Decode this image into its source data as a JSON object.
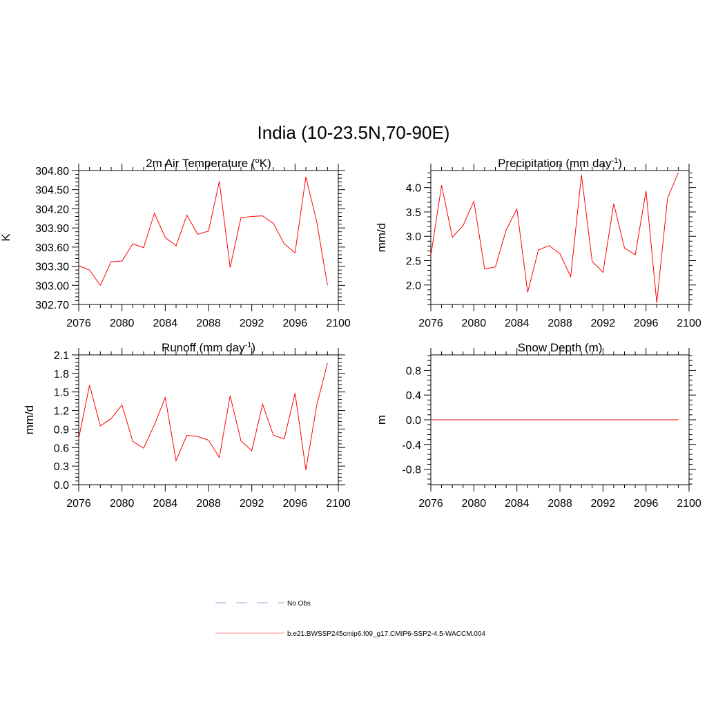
{
  "figure": {
    "title": "India (10-23.5N,70-90E)"
  },
  "chart_data": [
    {
      "type": "line",
      "title": "2m Air Temperature (",
      "title_sup": "o",
      "title_after": "K)",
      "xlabel": "",
      "ylabel": "K",
      "xlim": [
        2076,
        2100
      ],
      "ylim": [
        302.7,
        304.8
      ],
      "xticks": [
        2076,
        2080,
        2084,
        2088,
        2092,
        2096,
        2100
      ],
      "xticklabels": [
        "2076",
        "2080",
        "2084",
        "2088",
        "2092",
        "2096",
        "2100"
      ],
      "yticks": [
        302.7,
        303.0,
        303.3,
        303.6,
        303.9,
        304.2,
        304.5,
        304.8
      ],
      "yticklabels": [
        "302.70",
        "303.00",
        "303.30",
        "303.60",
        "303.90",
        "304.20",
        "304.50",
        "304.80"
      ],
      "x": [
        2076,
        2077,
        2078,
        2079,
        2080,
        2081,
        2082,
        2083,
        2084,
        2085,
        2086,
        2087,
        2088,
        2089,
        2090,
        2091,
        2092,
        2093,
        2094,
        2095,
        2096,
        2097,
        2098,
        2099
      ],
      "series": [
        {
          "values": [
            303.31,
            303.24,
            303.0,
            303.37,
            303.38,
            303.65,
            303.59,
            304.13,
            303.75,
            303.62,
            304.1,
            303.8,
            303.85,
            304.63,
            303.28,
            304.06,
            304.08,
            304.09,
            303.97,
            303.65,
            303.51,
            304.7,
            304.0,
            303.0
          ],
          "color": "#ff0000"
        }
      ]
    },
    {
      "type": "line",
      "title": "Precipitation (mm day",
      "title_sup": "-1",
      "title_after": ")",
      "xlabel": "",
      "ylabel": "mm/d",
      "xlim": [
        2076,
        2100
      ],
      "ylim": [
        1.6,
        4.35
      ],
      "xticks": [
        2076,
        2080,
        2084,
        2088,
        2092,
        2096,
        2100
      ],
      "xticklabels": [
        "2076",
        "2080",
        "2084",
        "2088",
        "2092",
        "2096",
        "2100"
      ],
      "yticks": [
        2.0,
        2.5,
        3.0,
        3.5,
        4.0
      ],
      "yticklabels": [
        "2.0",
        "2.5",
        "3.0",
        "3.5",
        "4.0"
      ],
      "x": [
        2076,
        2077,
        2078,
        2079,
        2080,
        2081,
        2082,
        2083,
        2084,
        2085,
        2086,
        2087,
        2088,
        2089,
        2090,
        2091,
        2092,
        2093,
        2094,
        2095,
        2096,
        2097,
        2098,
        2099
      ],
      "series": [
        {
          "values": [
            2.6,
            4.05,
            2.98,
            3.22,
            3.72,
            2.33,
            2.37,
            3.13,
            3.56,
            1.85,
            2.72,
            2.81,
            2.64,
            2.17,
            4.26,
            2.48,
            2.26,
            3.67,
            2.76,
            2.62,
            3.93,
            1.63,
            3.78,
            4.31
          ],
          "color": "#ff0000"
        }
      ]
    },
    {
      "type": "line",
      "title": "Runoff (mm day",
      "title_sup": "-1",
      "title_after": ")",
      "xlabel": "",
      "ylabel": "mm/d",
      "xlim": [
        2076,
        2100
      ],
      "ylim": [
        0.0,
        2.1
      ],
      "xticks": [
        2076,
        2080,
        2084,
        2088,
        2092,
        2096,
        2100
      ],
      "xticklabels": [
        "2076",
        "2080",
        "2084",
        "2088",
        "2092",
        "2096",
        "2100"
      ],
      "yticks": [
        0.0,
        0.3,
        0.6,
        0.9,
        1.2,
        1.5,
        1.8,
        2.1
      ],
      "yticklabels": [
        "0.0",
        "0.3",
        "0.6",
        "0.9",
        "1.2",
        "1.5",
        "1.8",
        "2.1"
      ],
      "x": [
        2076,
        2077,
        2078,
        2079,
        2080,
        2081,
        2082,
        2083,
        2084,
        2085,
        2086,
        2087,
        2088,
        2089,
        2090,
        2091,
        2092,
        2093,
        2094,
        2095,
        2096,
        2097,
        2098,
        2099
      ],
      "series": [
        {
          "values": [
            0.75,
            1.61,
            0.95,
            1.07,
            1.29,
            0.7,
            0.59,
            0.97,
            1.41,
            0.39,
            0.8,
            0.78,
            0.72,
            0.44,
            1.44,
            0.71,
            0.55,
            1.3,
            0.8,
            0.74,
            1.48,
            0.24,
            1.28,
            1.97
          ],
          "color": "#ff0000"
        }
      ]
    },
    {
      "type": "line",
      "title": "Snow Depth (m)",
      "title_sup": "",
      "title_after": "",
      "xlabel": "",
      "ylabel": "m",
      "xlim": [
        2076,
        2100
      ],
      "ylim": [
        -1.05,
        1.05
      ],
      "xticks": [
        2076,
        2080,
        2084,
        2088,
        2092,
        2096,
        2100
      ],
      "xticklabels": [
        "2076",
        "2080",
        "2084",
        "2088",
        "2092",
        "2096",
        "2100"
      ],
      "yticks": [
        -0.8,
        -0.4,
        0.0,
        0.4,
        0.8
      ],
      "yticklabels": [
        "-0.8",
        "-0.4",
        "0.0",
        "0.4",
        "0.8"
      ],
      "x": [
        2076,
        2077,
        2078,
        2079,
        2080,
        2081,
        2082,
        2083,
        2084,
        2085,
        2086,
        2087,
        2088,
        2089,
        2090,
        2091,
        2092,
        2093,
        2094,
        2095,
        2096,
        2097,
        2098,
        2099
      ],
      "series": [
        {
          "values": [
            0,
            0,
            0,
            0,
            0,
            0,
            0,
            0,
            0,
            0,
            0,
            0,
            0,
            0,
            0,
            0,
            0,
            0,
            0,
            0,
            0,
            0,
            0,
            0
          ],
          "color": "#ff0000"
        }
      ]
    }
  ],
  "legend": {
    "entries": [
      {
        "label": "No Obs",
        "color": "#9999dd",
        "style": "dashed"
      },
      {
        "label": "b.e21.BWSSP245cmip6.f09_g17.CMIP6-SSP2-4.5-WACCM.004",
        "color": "#ff8888",
        "style": "solid"
      }
    ]
  }
}
